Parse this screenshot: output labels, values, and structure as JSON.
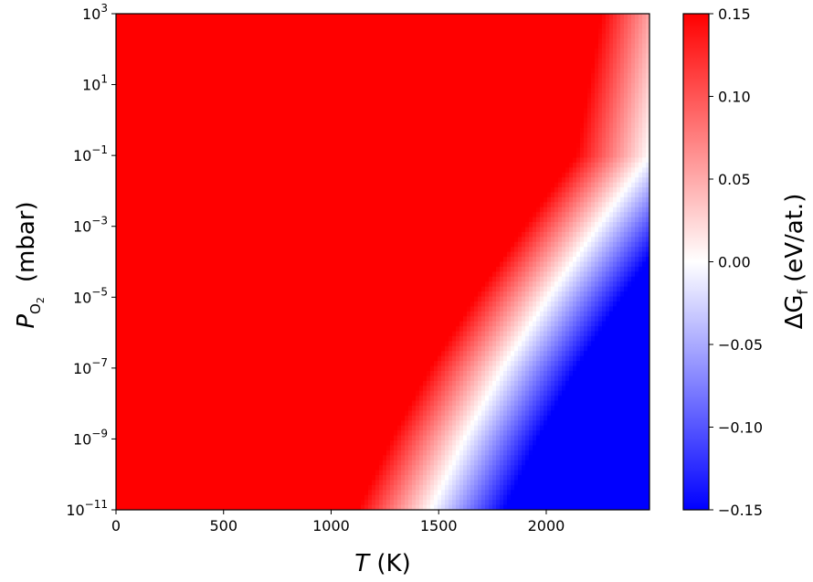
{
  "chart_data": {
    "type": "heatmap",
    "x_unit_text": " (K)",
    "x_symbol": "T",
    "y_symbol": "P",
    "y_subscript": "O",
    "y_subsub": "2",
    "y_unit_text": "(mbar)",
    "colorbar_symbol": "ΔG",
    "colorbar_subscript": "f",
    "colorbar_unit_text": " (eV/at.)",
    "xlim": [
      0,
      2480
    ],
    "x_ticks": [
      {
        "value": 0,
        "label": "0"
      },
      {
        "value": 500,
        "label": "500"
      },
      {
        "value": 1000,
        "label": "1000"
      },
      {
        "value": 1500,
        "label": "1500"
      },
      {
        "value": 2000,
        "label": "2000"
      }
    ],
    "y_scale": "log",
    "ylim": [
      1e-11,
      1000
    ],
    "y_ticks": [
      {
        "exp": 3,
        "base": "10",
        "exponent": "3"
      },
      {
        "exp": 1,
        "base": "10",
        "exponent": "1"
      },
      {
        "exp": -1,
        "base": "10",
        "exponent": "−1"
      },
      {
        "exp": -3,
        "base": "10",
        "exponent": "−3"
      },
      {
        "exp": -5,
        "base": "10",
        "exponent": "−5"
      },
      {
        "exp": -7,
        "base": "10",
        "exponent": "−7"
      },
      {
        "exp": -9,
        "base": "10",
        "exponent": "−9"
      },
      {
        "exp": -11,
        "base": "10",
        "exponent": "−11"
      }
    ],
    "colormap": "bwr",
    "color_range": [
      -0.15,
      0.15
    ],
    "colorbar_ticks": [
      {
        "value": 0.15,
        "label": "0.15"
      },
      {
        "value": 0.1,
        "label": "0.10"
      },
      {
        "value": 0.05,
        "label": "0.05"
      },
      {
        "value": 0.0,
        "label": "0.00"
      },
      {
        "value": -0.05,
        "label": "−0.05"
      },
      {
        "value": -0.1,
        "label": "−0.10"
      },
      {
        "value": -0.15,
        "label": "−0.15"
      }
    ],
    "zero_contour": [
      {
        "p_exp": 3,
        "T": 2600
      },
      {
        "p_exp": -1,
        "T": 2480
      },
      {
        "p_exp": -3,
        "T": 2240
      },
      {
        "p_exp": -5,
        "T": 2010
      },
      {
        "p_exp": -7,
        "T": 1800
      },
      {
        "p_exp": -9,
        "T": 1620
      },
      {
        "p_exp": -11,
        "T": 1465
      }
    ],
    "colors": {
      "low": "#0000ff",
      "mid": "#ffffff",
      "high": "#ff0000"
    }
  }
}
